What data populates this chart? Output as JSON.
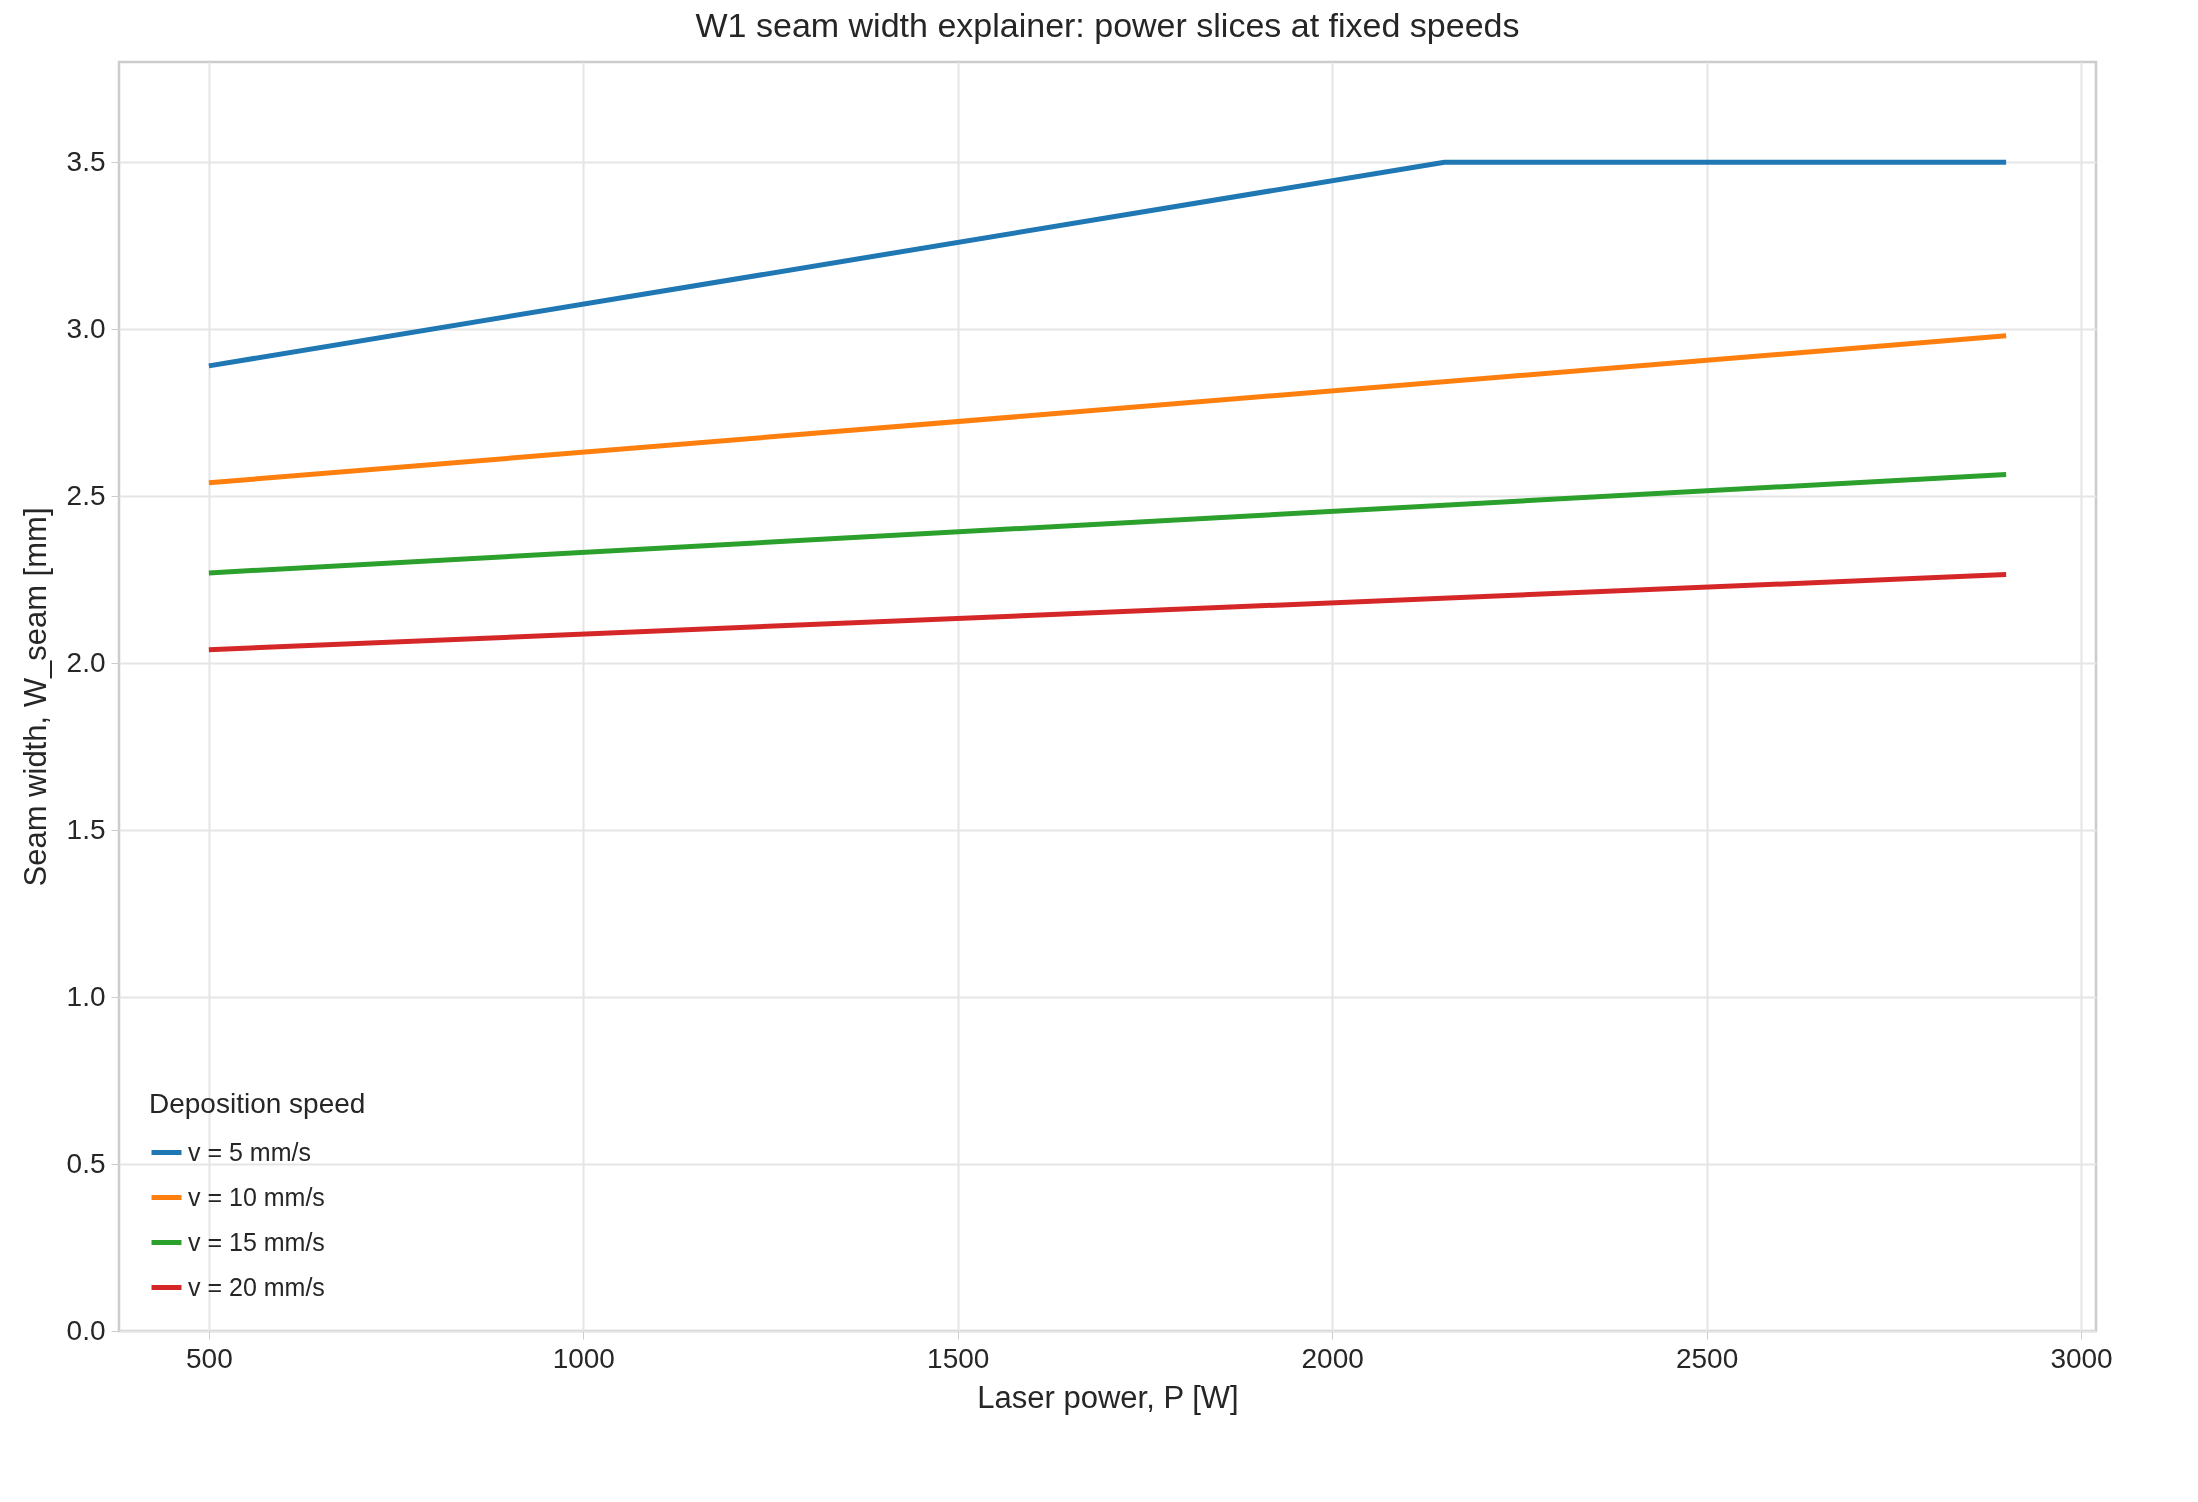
{
  "chart_data": {
    "type": "line",
    "title": "W1 seam width explainer: power slices at fixed speeds",
    "xlabel": "Laser power, P [W]",
    "ylabel": "Seam width, W_seam [mm]",
    "legend_title": "Deposition speed",
    "series": [
      {
        "name": "v = 5 mm/s",
        "color": "#1f77b4",
        "x": [
          500,
          2150,
          2900
        ],
        "values": [
          2.89,
          3.5,
          3.5
        ]
      },
      {
        "name": "v = 10 mm/s",
        "color": "#ff7f0e",
        "x": [
          500,
          2900
        ],
        "values": [
          2.54,
          2.98
        ]
      },
      {
        "name": "v = 15 mm/s",
        "color": "#2ca02c",
        "x": [
          500,
          2900
        ],
        "values": [
          2.27,
          2.565
        ]
      },
      {
        "name": "v = 20 mm/s",
        "color": "#d62728",
        "x": [
          500,
          2900
        ],
        "values": [
          2.04,
          2.265
        ]
      }
    ],
    "xlim": [
      380,
      3020
    ],
    "xticks": [
      500,
      1000,
      1500,
      2000,
      2500,
      3000
    ],
    "ylim": [
      0,
      3.8
    ],
    "yticks": [
      {
        "value": 0,
        "label": "0.0"
      },
      0.5,
      {
        "value": 1,
        "label": "1.0"
      },
      1.5,
      {
        "value": 2,
        "label": "2.0"
      },
      2.5,
      {
        "value": 3,
        "label": "3.0"
      },
      3.5
    ],
    "grid": true,
    "legend": "bottom left",
    "line_style": "solid",
    "marker": "none"
  }
}
